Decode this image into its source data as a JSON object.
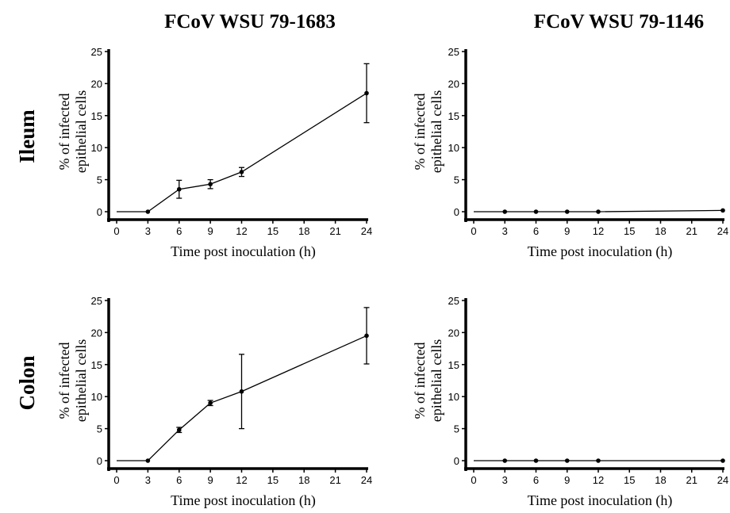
{
  "columns": [
    "FCoV WSU 79-1683",
    "FCoV WSU 79-1146"
  ],
  "rows": [
    "Ileum",
    "Colon"
  ],
  "chart_data": [
    {
      "type": "line",
      "xlabel": "Time post inoculation (h)",
      "ylabel": [
        "% of infected",
        "epithelial cells"
      ],
      "xlim": [
        0,
        24
      ],
      "ylim": [
        0,
        25
      ],
      "xticks": [
        "0",
        "3",
        "6",
        "9",
        "12",
        "15",
        "18",
        "21",
        "24"
      ],
      "yticks": [
        "0",
        "5",
        "10",
        "15",
        "20",
        "25"
      ],
      "x": [
        0,
        3,
        6,
        9,
        12,
        24
      ],
      "values": [
        0,
        0,
        3.5,
        4.3,
        6.2,
        18.5
      ],
      "error": [
        0,
        0,
        1.4,
        0.7,
        0.7,
        4.6
      ]
    },
    {
      "type": "line",
      "xlabel": "Time post inoculation (h)",
      "ylabel": [
        "% of infected",
        "epithelial cells"
      ],
      "xlim": [
        0,
        24
      ],
      "ylim": [
        0,
        25
      ],
      "xticks": [
        "0",
        "3",
        "6",
        "9",
        "12",
        "15",
        "18",
        "21",
        "24"
      ],
      "yticks": [
        "0",
        "5",
        "10",
        "15",
        "20",
        "25"
      ],
      "x": [
        0,
        3,
        6,
        9,
        12,
        24
      ],
      "values": [
        0,
        0,
        0,
        0,
        0,
        0.2
      ],
      "error": [
        0,
        0,
        0,
        0,
        0,
        0
      ]
    },
    {
      "type": "line",
      "xlabel": "Time post inoculation (h)",
      "ylabel": [
        "% of infected",
        "epithelial cells"
      ],
      "xlim": [
        0,
        24
      ],
      "ylim": [
        0,
        25
      ],
      "xticks": [
        "0",
        "3",
        "6",
        "9",
        "12",
        "15",
        "18",
        "21",
        "24"
      ],
      "yticks": [
        "0",
        "5",
        "10",
        "15",
        "20",
        "25"
      ],
      "x": [
        0,
        3,
        6,
        9,
        12,
        24
      ],
      "values": [
        0,
        0,
        4.8,
        9.0,
        10.8,
        19.5
      ],
      "error": [
        0,
        0,
        0.4,
        0.4,
        5.8,
        4.4
      ]
    },
    {
      "type": "line",
      "xlabel": "Time post inoculation (h)",
      "ylabel": [
        "% of infected",
        "epithelial cells"
      ],
      "xlim": [
        0,
        24
      ],
      "ylim": [
        0,
        25
      ],
      "xticks": [
        "0",
        "3",
        "6",
        "9",
        "12",
        "15",
        "18",
        "21",
        "24"
      ],
      "yticks": [
        "0",
        "5",
        "10",
        "15",
        "20",
        "25"
      ],
      "x": [
        0,
        3,
        6,
        9,
        12,
        24
      ],
      "values": [
        0,
        0,
        0,
        0,
        0,
        0
      ],
      "error": [
        0,
        0,
        0,
        0,
        0,
        0
      ]
    }
  ]
}
